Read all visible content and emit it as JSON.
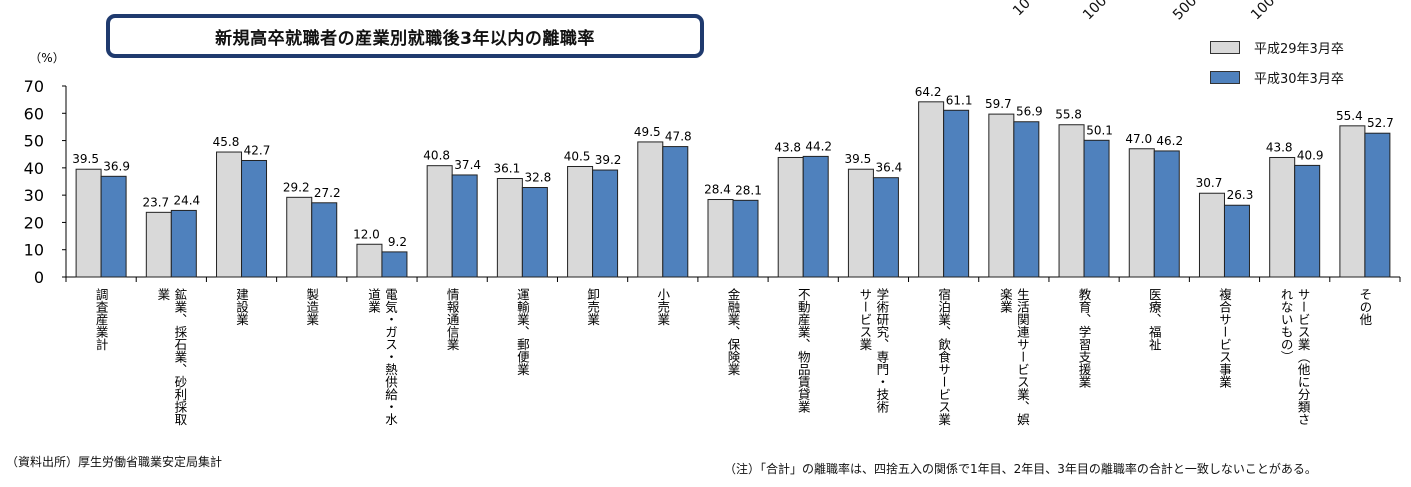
{
  "title": "新規高卒就職者の産業別就職後3年以内の離職率",
  "cut_off_labels": [
    "10",
    "100",
    "500",
    "100"
  ],
  "source_note": "（資料出所）厚生労働省職業安定局集計",
  "footnote": "（注）「合計」の離職率は、四捨五入の関係で1年目、2年目、3年目の離職率の合計と一致しないことがある。",
  "colors": {
    "series1": "#d9d9d9",
    "series2": "#4f81bd",
    "title_border": "#1f3a6e"
  },
  "chart_data": {
    "type": "bar",
    "title": "新規高卒就職者の産業別就職後3年以内の離職率",
    "yunit": "（%）",
    "ylim": [
      0,
      70
    ],
    "yticks": [
      "0",
      "10",
      "20",
      "30",
      "40",
      "50",
      "60",
      "70"
    ],
    "grid": false,
    "legend_position": "top-right",
    "categories": [
      "調査産業計",
      "鉱業、採石業、砂利採取業",
      "建設業",
      "製造業",
      "電気・ガス・熱供給・水道業",
      "情報通信業",
      "運輸業、郵便業",
      "卸売業",
      "小売業",
      "金融業、保険業",
      "不動産業、物品賃貸業",
      "学術研究、専門・技術サービス業",
      "宿泊業、飲食サービス業",
      "生活関連サービス業、娯楽業",
      "教育、学習支援業",
      "医療、福祉",
      "複合サービス事業",
      "サービス業（他に分類されないもの）",
      "その他"
    ],
    "category_lines": [
      [
        "調査産業計"
      ],
      [
        "鉱業、採石業、砂利採取",
        "業"
      ],
      [
        "建設業"
      ],
      [
        "製造業"
      ],
      [
        "電気・ガス・熱供給・水",
        "道業"
      ],
      [
        "情報通信業"
      ],
      [
        "運輸業、郵便業"
      ],
      [
        "卸売業"
      ],
      [
        "小売業"
      ],
      [
        "金融業、保険業"
      ],
      [
        "不動産業、物品賃貸業"
      ],
      [
        "学術研究、専門・技術",
        "サービス業"
      ],
      [
        "宿泊業、飲食サービス業"
      ],
      [
        "生活関連サービス業、娯",
        "楽業"
      ],
      [
        "教育、学習支援業"
      ],
      [
        "医療、福祉"
      ],
      [
        "複合サービス事業"
      ],
      [
        "サービス業（他に分類さ",
        "れないもの）"
      ],
      [
        "その他"
      ]
    ],
    "series": [
      {
        "name": "平成29年3月卒",
        "values": [
          39.5,
          23.7,
          45.8,
          29.2,
          12.0,
          40.8,
          36.1,
          40.5,
          49.5,
          28.4,
          43.8,
          39.5,
          64.2,
          59.7,
          55.8,
          47.0,
          30.7,
          43.8,
          55.4
        ],
        "labels": [
          "39.5",
          "23.7",
          "45.8",
          "29.2",
          "12.0",
          "40.8",
          "36.1",
          "40.5",
          "49.5",
          "28.4",
          "43.8",
          "39.5",
          "64.2",
          "59.7",
          "55.8",
          "47.0",
          "30.7",
          "43.8",
          "55.4"
        ]
      },
      {
        "name": "平成30年3月卒",
        "values": [
          36.9,
          24.4,
          42.7,
          27.2,
          9.2,
          37.4,
          32.8,
          39.2,
          47.8,
          28.1,
          44.2,
          36.4,
          61.1,
          56.9,
          50.1,
          46.2,
          26.3,
          40.9,
          52.7
        ],
        "labels": [
          "36.9",
          "24.4",
          "42.7",
          "27.2",
          "9.2",
          "37.4",
          "32.8",
          "39.2",
          "47.8",
          "28.1",
          "44.2",
          "36.4",
          "61.1",
          "56.9",
          "50.1",
          "46.2",
          "26.3",
          "40.9",
          "52.7"
        ]
      }
    ]
  }
}
